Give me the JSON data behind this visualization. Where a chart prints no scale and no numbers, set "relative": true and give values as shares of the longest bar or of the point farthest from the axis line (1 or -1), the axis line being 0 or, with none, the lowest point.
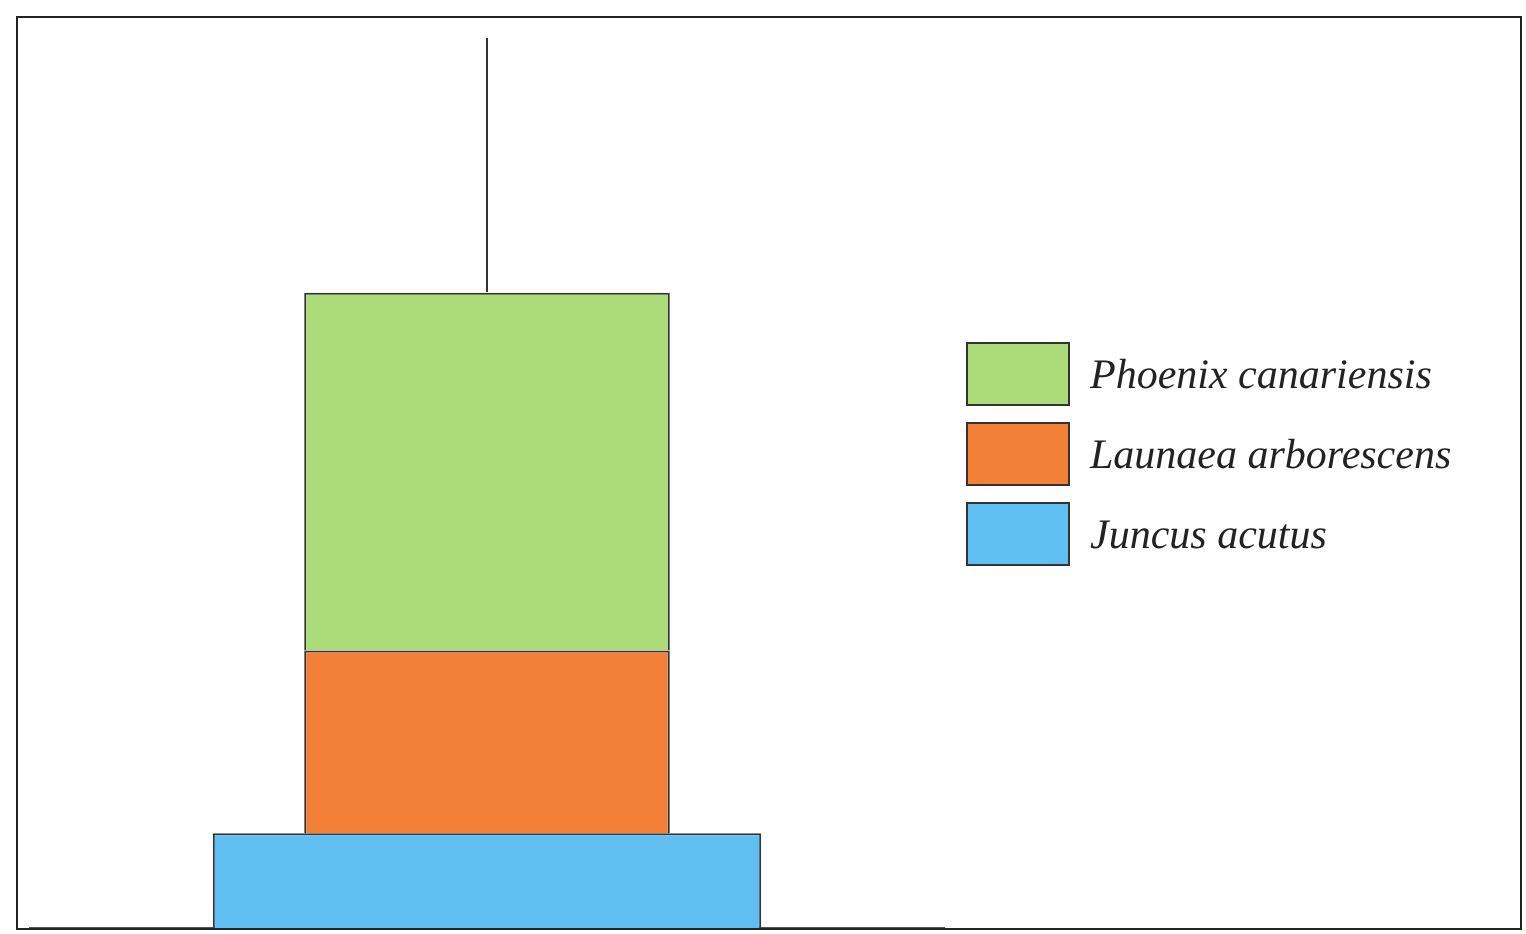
{
  "chart_data": {
    "type": "bar",
    "stacked": true,
    "relative": true,
    "categories": [
      null
    ],
    "legend": "right",
    "series": [
      {
        "name": "Juncus acutus",
        "color": "#5fbff0",
        "values": [
          0.149
        ]
      },
      {
        "name": "Launaea arborescens",
        "color": "#f47f37",
        "values": [
          0.288
        ]
      },
      {
        "name": "Phoenix canariensis",
        "color": "#acdc7a",
        "values": [
          0.563
        ]
      }
    ]
  }
}
